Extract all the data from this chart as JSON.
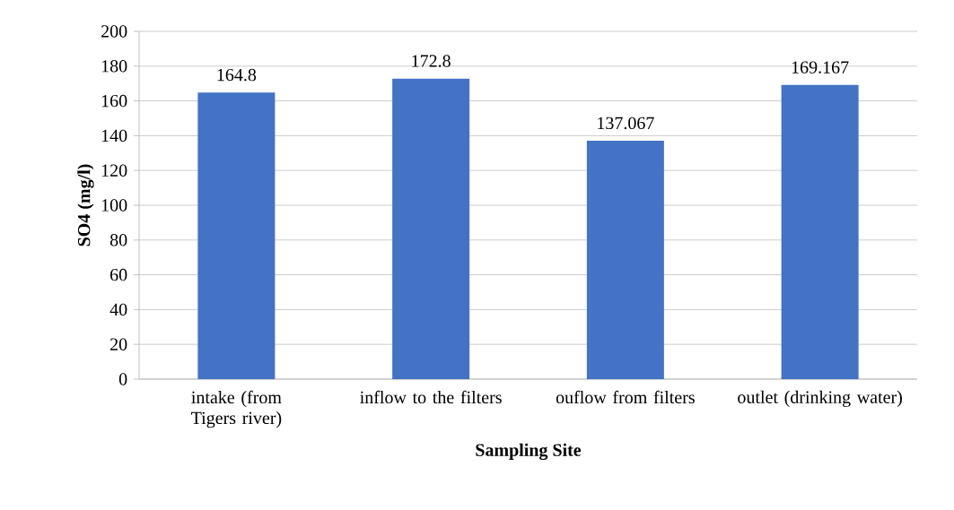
{
  "chart_data": {
    "type": "bar",
    "xlabel": "Sampling Site",
    "ylabel": "SO4 (mg/l)",
    "categories": [
      "intake (from Tigers river)",
      "inflow to the filters",
      "ouflow from filters",
      "outlet (drinking water)"
    ],
    "values": [
      164.8,
      172.8,
      137.067,
      169.167
    ],
    "color": "#4472c4",
    "ylim": [
      0,
      200
    ],
    "yticks": [
      0,
      20,
      40,
      60,
      80,
      100,
      120,
      140,
      160,
      180,
      200
    ],
    "grid": "y",
    "data_labels": true
  }
}
